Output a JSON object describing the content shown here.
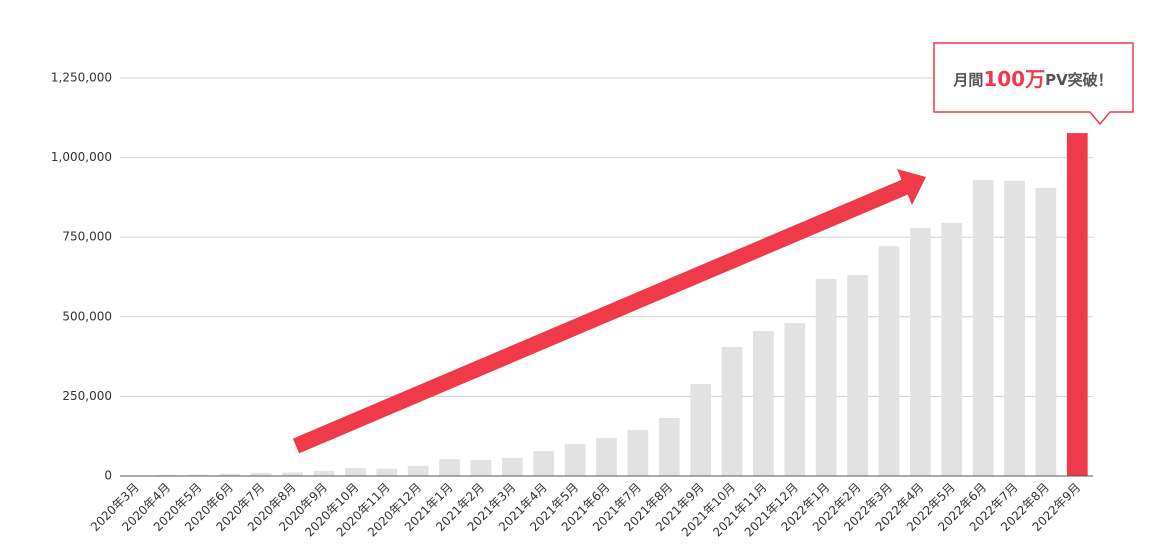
{
  "chart_data": {
    "type": "bar",
    "categories": [
      "2020年3月",
      "2020年4月",
      "2020年5月",
      "2020年6月",
      "2020年7月",
      "2020年8月",
      "2020年9月",
      "2020年10月",
      "2020年11月",
      "2020年12月",
      "2021年1月",
      "2021年2月",
      "2021年3月",
      "2021年4月",
      "2021年5月",
      "2021年6月",
      "2021年7月",
      "2021年8月",
      "2021年9月",
      "2021年10月",
      "2021年11月",
      "2021年12月",
      "2022年1月",
      "2022年2月",
      "2022年3月",
      "2022年4月",
      "2022年5月",
      "2022年6月",
      "2022年7月",
      "2022年8月",
      "2022年9月"
    ],
    "values": [
      1000,
      3000,
      4000,
      7000,
      10000,
      11000,
      16000,
      25000,
      23000,
      32000,
      53000,
      50000,
      57000,
      78000,
      100000,
      120000,
      145000,
      182000,
      289000,
      405000,
      455000,
      480000,
      619000,
      631000,
      722000,
      779000,
      795000,
      930000,
      927000,
      905000,
      1077000
    ],
    "colors": [
      "#e2e2e2",
      "#e2e2e2",
      "#e2e2e2",
      "#e2e2e2",
      "#e2e2e2",
      "#e2e2e2",
      "#e2e2e2",
      "#e2e2e2",
      "#e2e2e2",
      "#e2e2e2",
      "#e2e2e2",
      "#e2e2e2",
      "#e2e2e2",
      "#e2e2e2",
      "#e2e2e2",
      "#e2e2e2",
      "#e2e2e2",
      "#e2e2e2",
      "#e2e2e2",
      "#e2e2e2",
      "#e2e2e2",
      "#e2e2e2",
      "#e2e2e2",
      "#e2e2e2",
      "#e2e2e2",
      "#e2e2e2",
      "#e2e2e2",
      "#e2e2e2",
      "#e2e2e2",
      "#e2e2e2",
      "#f03a4a"
    ],
    "ylim": [
      0,
      1250000
    ],
    "yticks": [
      0,
      {
        "value": 250000,
        "label": "250,000"
      },
      {
        "value": 500000,
        "label": "500,000"
      },
      {
        "value": 750000,
        "label": "750,000"
      },
      {
        "value": 1000000,
        "label": "1,000,000"
      },
      {
        "value": 1250000,
        "label": "1,250,000"
      }
    ],
    "grid": true,
    "annotation": {
      "text_parts": [
        "月間",
        "100万",
        "PV突破！"
      ]
    }
  }
}
